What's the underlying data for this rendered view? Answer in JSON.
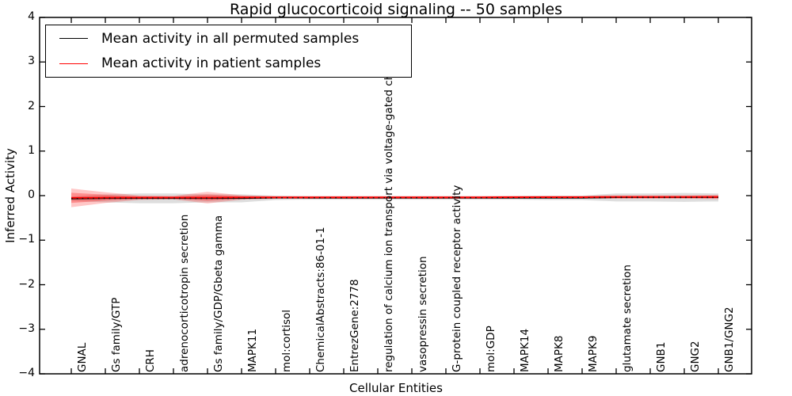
{
  "title": "Rapid glucocorticoid signaling -- 50 samples",
  "legend": {
    "items": [
      {
        "label": "Mean activity in all permuted samples",
        "color": "#000000"
      },
      {
        "label": "Mean activity in patient samples",
        "color": "#ff0000"
      }
    ]
  },
  "colors": {
    "permuted_line": "#000000",
    "patient_line": "#ff0000",
    "permuted_band": "rgba(0,0,0,0.13)",
    "patient_band": "rgba(255,0,0,0.22)",
    "patient_band_inner": "rgba(255,0,0,0.28)",
    "frame": "#000000"
  },
  "chart_data": {
    "type": "line",
    "title": "Rapid glucocorticoid signaling -- 50 samples",
    "xlabel": "Cellular Entities",
    "ylabel": "Inferred Activity",
    "ylim": [
      -4,
      4
    ],
    "yticks": [
      -4,
      -3,
      -2,
      -1,
      0,
      1,
      2,
      3,
      4
    ],
    "grid": false,
    "legend_position": "upper left",
    "categories": [
      "GNAL",
      "Gs family/GTP",
      "CRH",
      "adrenocorticotropin secretion",
      "Gs family/GDP/Gbeta gamma",
      "MAPK11",
      "mol:cortisol",
      "ChemicalAbstracts:86-01-1",
      "EntrezGene:2778",
      "regulation of calcium ion transport via voltage-gated channels",
      "vasopressin secretion",
      "G-protein coupled receptor activity",
      "mol:GDP",
      "MAPK14",
      "MAPK8",
      "MAPK9",
      "glutamate secretion",
      "GNB1",
      "GNG2",
      "GNB1/GNG2"
    ],
    "series": [
      {
        "name": "Mean activity in all permuted samples",
        "color": "#000000",
        "values": [
          -0.07,
          -0.06,
          -0.06,
          -0.06,
          -0.06,
          -0.06,
          -0.05,
          -0.05,
          -0.05,
          -0.05,
          -0.05,
          -0.05,
          -0.05,
          -0.05,
          -0.05,
          -0.05,
          -0.04,
          -0.04,
          -0.04,
          -0.04
        ],
        "band_halfwidth": [
          0.05,
          0.09,
          0.11,
          0.11,
          0.09,
          0.09,
          0.05,
          0.04,
          0.04,
          0.04,
          0.04,
          0.04,
          0.04,
          0.04,
          0.05,
          0.05,
          0.09,
          0.09,
          0.1,
          0.09
        ]
      },
      {
        "name": "Mean activity in patient samples",
        "color": "#ff0000",
        "values": [
          -0.05,
          -0.045,
          -0.045,
          -0.045,
          -0.045,
          -0.04,
          -0.04,
          -0.04,
          -0.04,
          -0.04,
          -0.04,
          -0.04,
          -0.04,
          -0.035,
          -0.035,
          -0.035,
          -0.03,
          -0.03,
          -0.03,
          -0.03
        ],
        "band_halfwidth": [
          0.21,
          0.12,
          0.05,
          0.04,
          0.13,
          0.05,
          0.03,
          0.03,
          0.03,
          0.03,
          0.03,
          0.03,
          0.03,
          0.03,
          0.03,
          0.03,
          0.04,
          0.04,
          0.04,
          0.05
        ]
      }
    ]
  }
}
